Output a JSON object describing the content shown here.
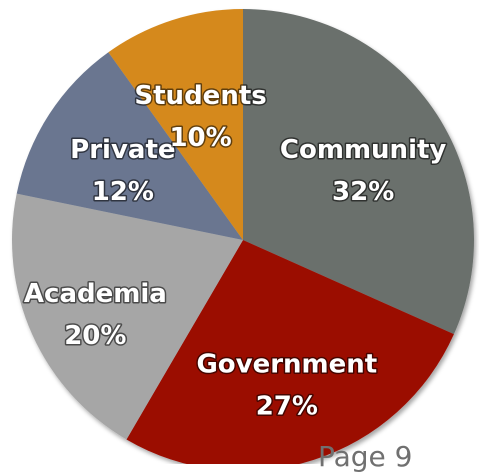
{
  "chart_data": {
    "type": "pie",
    "slices": [
      {
        "label": "Community",
        "percent_text": "32%",
        "value": 32,
        "color": "#6b706c"
      },
      {
        "label": "Government",
        "percent_text": "27%",
        "value": 27,
        "color": "#9b0a04"
      },
      {
        "label": "Academia",
        "percent_text": "20%",
        "value": 20,
        "color": "#a6a6a6"
      },
      {
        "label": "Private",
        "percent_text": "12%",
        "value": 12,
        "color": "#6a7690"
      },
      {
        "label": "Students",
        "percent_text": "10%",
        "value": 10,
        "color": "#d5891b"
      }
    ],
    "start_angle": "12 o'clock",
    "direction": "clockwise",
    "legend": "none"
  },
  "footer": {
    "page_text": "Page 9"
  }
}
